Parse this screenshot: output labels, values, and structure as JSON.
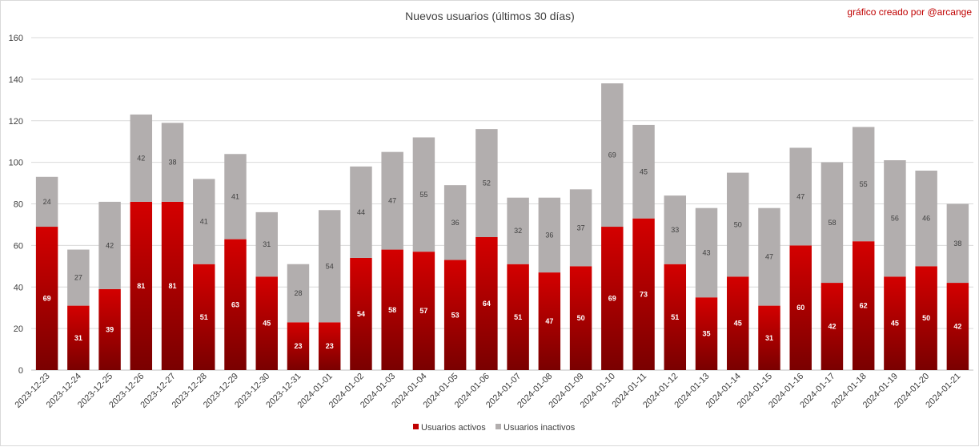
{
  "chart_data": {
    "type": "bar",
    "stacked": true,
    "title": "Nuevos usuarios (últimos 30 días)",
    "credit": "gráfico creado por @arcange",
    "xlabel": "",
    "ylabel": "",
    "ylim": [
      0,
      160
    ],
    "yticks": [
      0,
      20,
      40,
      60,
      80,
      100,
      120,
      140,
      160
    ],
    "grid": true,
    "legend_position": "bottom",
    "categories": [
      "2023-12-23",
      "2023-12-24",
      "2023-12-25",
      "2023-12-26",
      "2023-12-27",
      "2023-12-28",
      "2023-12-29",
      "2023-12-30",
      "2023-12-31",
      "2024-01-01",
      "2024-01-02",
      "2024-01-03",
      "2024-01-04",
      "2024-01-05",
      "2024-01-06",
      "2024-01-07",
      "2024-01-08",
      "2024-01-09",
      "2024-01-10",
      "2024-01-11",
      "2024-01-12",
      "2024-01-13",
      "2024-01-14",
      "2024-01-15",
      "2024-01-16",
      "2024-01-17",
      "2024-01-18",
      "2024-01-19",
      "2024-01-20",
      "2024-01-21"
    ],
    "series": [
      {
        "name": "Usuarios activos",
        "color": "#c00000",
        "values": [
          69,
          31,
          39,
          81,
          81,
          51,
          63,
          45,
          23,
          23,
          54,
          58,
          57,
          53,
          64,
          51,
          47,
          50,
          69,
          73,
          51,
          35,
          45,
          31,
          60,
          42,
          62,
          45,
          50,
          42
        ]
      },
      {
        "name": "Usuarios inactivos",
        "color": "#b2aeae",
        "values": [
          24,
          27,
          42,
          42,
          38,
          41,
          41,
          31,
          28,
          54,
          44,
          47,
          55,
          36,
          52,
          32,
          36,
          37,
          69,
          45,
          33,
          43,
          50,
          47,
          47,
          58,
          55,
          56,
          46,
          38
        ]
      }
    ]
  }
}
